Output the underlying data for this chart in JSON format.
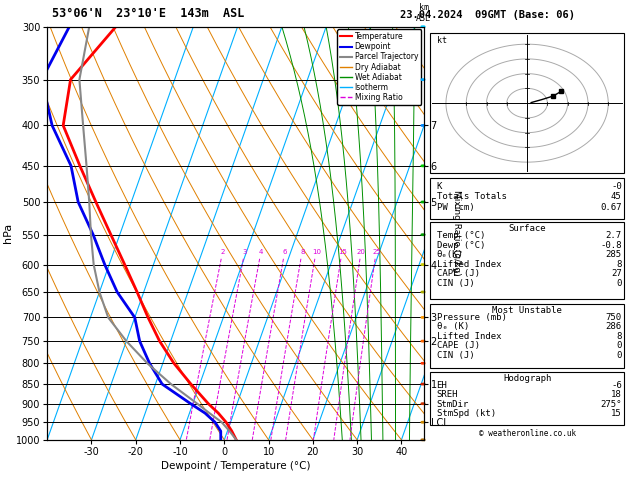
{
  "title_left": "53°06'N  23°10'E  143m  ASL",
  "title_right": "23.04.2024  09GMT (Base: 06)",
  "xlabel": "Dewpoint / Temperature (°C)",
  "ylabel_left": "hPa",
  "pressure_ticks": [
    300,
    350,
    400,
    450,
    500,
    550,
    600,
    650,
    700,
    750,
    800,
    850,
    900,
    950,
    1000
  ],
  "temp_ticks": [
    -30,
    -20,
    -10,
    0,
    10,
    20,
    30,
    40
  ],
  "T_min": -40,
  "T_max": 45,
  "P_min": 300,
  "P_max": 1000,
  "skew_factor": 33,
  "dry_adiabat_thetas_c": [
    -40,
    -30,
    -20,
    -10,
    0,
    10,
    20,
    30,
    40,
    50,
    60,
    70,
    80,
    90,
    100,
    110,
    120,
    130
  ],
  "wet_adiabat_thetas_c": [
    -20,
    -15,
    -10,
    -5,
    0,
    5,
    10,
    15,
    20,
    25,
    30,
    35,
    40
  ],
  "mixing_ratio_values": [
    2,
    3,
    4,
    6,
    8,
    10,
    15,
    20,
    25
  ],
  "temp_profile_p": [
    1000,
    975,
    950,
    925,
    900,
    850,
    800,
    750,
    700,
    650,
    600,
    550,
    500,
    450,
    400,
    350,
    300
  ],
  "temp_profile_t": [
    2.7,
    1.0,
    -1.0,
    -3.5,
    -6.5,
    -12.0,
    -17.5,
    -22.5,
    -27.0,
    -31.5,
    -36.5,
    -42.0,
    -48.0,
    -54.5,
    -61.5,
    -63.5,
    -57.5
  ],
  "dewp_profile_p": [
    1000,
    975,
    950,
    925,
    900,
    850,
    800,
    750,
    700,
    650,
    600,
    550,
    500,
    450,
    400,
    350,
    300
  ],
  "dewp_profile_t": [
    -0.8,
    -1.5,
    -3.5,
    -6.5,
    -10.5,
    -18.5,
    -23.0,
    -27.0,
    -30.0,
    -36.0,
    -41.0,
    -46.0,
    -52.0,
    -56.5,
    -64.0,
    -70.0,
    -68.0
  ],
  "parcel_profile_p": [
    1000,
    975,
    950,
    925,
    900,
    850,
    800,
    750,
    700,
    650,
    600,
    550,
    500,
    450,
    400,
    350,
    300
  ],
  "parcel_profile_t": [
    2.7,
    0.5,
    -2.0,
    -5.5,
    -9.0,
    -16.5,
    -23.5,
    -30.0,
    -36.0,
    -40.0,
    -43.5,
    -46.5,
    -49.5,
    -53.0,
    -57.0,
    -61.5,
    -63.5
  ],
  "km_ticks_p": [
    400,
    450,
    500,
    600,
    700,
    750,
    850,
    900,
    950
  ],
  "km_ticks_labels": [
    "7",
    "6",
    "5",
    "4",
    "3",
    "2",
    "1",
    "",
    "LCL"
  ],
  "color_isotherm": "#00b0ff",
  "color_dry_adiabat": "#e08000",
  "color_wet_adiabat": "#009000",
  "color_mixing_ratio": "#dd00dd",
  "color_temperature": "#ff0000",
  "color_dewpoint": "#0000ee",
  "color_parcel": "#888888",
  "wind_barb_colors": {
    "300": "#00ccff",
    "350": "#00aaff",
    "400": "#0088ff",
    "450": "#00cc00",
    "500": "#00aa00",
    "550": "#009900",
    "600": "#cccc00",
    "650": "#aaaa00",
    "700": "#ff9900",
    "750": "#ff6600",
    "800": "#ff3300",
    "850": "#cc2200",
    "900": "#cc3300",
    "950": "#cc8800",
    "1000": "#aa6600"
  },
  "info_K": "-0",
  "info_TT": "45",
  "info_PW": "0.67",
  "info_sfc_temp": "2.7",
  "info_sfc_dewp": "-0.8",
  "info_sfc_theta_e": "285",
  "info_sfc_LI": "8",
  "info_sfc_CAPE": "27",
  "info_sfc_CIN": "0",
  "info_mu_pres": "750",
  "info_mu_theta_e": "286",
  "info_mu_LI": "8",
  "info_mu_CAPE": "0",
  "info_mu_CIN": "0",
  "info_EH": "-6",
  "info_SREH": "18",
  "info_StmDir": "275°",
  "info_StmSpd": "15"
}
